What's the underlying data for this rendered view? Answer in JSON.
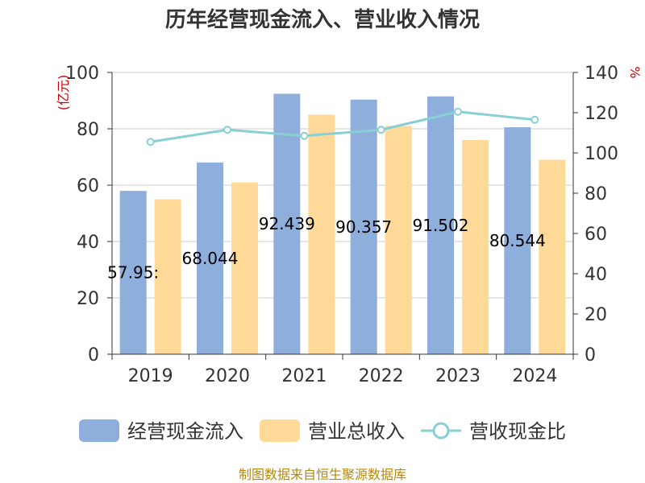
{
  "chart_data": {
    "type": "bar",
    "title": "历年经营现金流入、营业收入情况",
    "categories": [
      "2019",
      "2020",
      "2021",
      "2022",
      "2023",
      "2024"
    ],
    "series": [
      {
        "name": "经营现金流入",
        "type": "bar",
        "axis": "left",
        "color": "#8eaedb",
        "values": [
          57.952,
          68.044,
          92.439,
          90.357,
          91.502,
          80.544
        ],
        "data_labels": [
          "57.95:",
          "68.044",
          "92.439",
          "90.357",
          "91.502",
          "80.544"
        ]
      },
      {
        "name": "营业总收入",
        "type": "bar",
        "axis": "left",
        "color": "#ffd998",
        "values": [
          55,
          61,
          85,
          81,
          76,
          69
        ]
      },
      {
        "name": "营收现金比",
        "type": "line",
        "axis": "right",
        "color": "#88d0d4",
        "values": [
          105.5,
          111.5,
          108.5,
          111.5,
          120.5,
          116.5
        ]
      }
    ],
    "left_axis": {
      "unit": "(亿元)",
      "ylim": [
        0,
        100
      ],
      "ticks": [
        "0",
        "20",
        "40",
        "60",
        "80",
        "100"
      ]
    },
    "right_axis": {
      "unit": "%",
      "ylim": [
        0,
        140
      ],
      "ticks": [
        "0",
        "20",
        "40",
        "60",
        "80",
        "100",
        "120",
        "140"
      ]
    },
    "grid": true,
    "legend": "bottom",
    "source": "制图数据来自恒生聚源数据库"
  }
}
